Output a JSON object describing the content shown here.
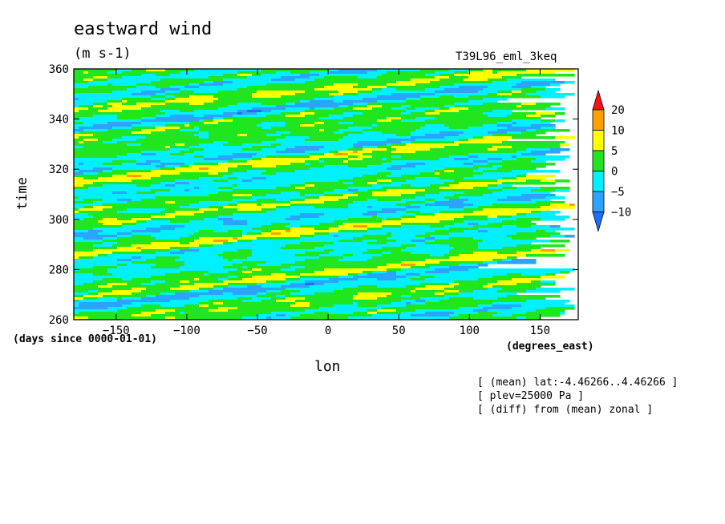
{
  "chart_data": {
    "type": "heatmap",
    "title": "eastward wind",
    "units": "(m s-1)",
    "run_label": "T39L96_eml_3keq",
    "xlabel": "lon",
    "x_units": "(degrees_east)",
    "ylabel": "time",
    "y_units": "(days since 0000-01-01)",
    "xlim": [
      -180,
      177
    ],
    "ylim": [
      260,
      360
    ],
    "x_ticks": [
      -150,
      -100,
      -50,
      0,
      50,
      100,
      150
    ],
    "y_ticks": [
      260,
      280,
      300,
      320,
      340,
      360
    ],
    "colorbar": {
      "levels": [
        -10,
        -5,
        0,
        5,
        10,
        20
      ],
      "colors": [
        "#1f6fff",
        "#2ba3ff",
        "#00f0ff",
        "#20e620",
        "#ffff00",
        "#ffa000",
        "#ff1010"
      ]
    },
    "annotations": [
      "[ (mean) lat:-4.46266..4.46266 ]",
      "[ plev=25000 Pa ]",
      "[ (diff) from (mean) zonal ]"
    ]
  }
}
